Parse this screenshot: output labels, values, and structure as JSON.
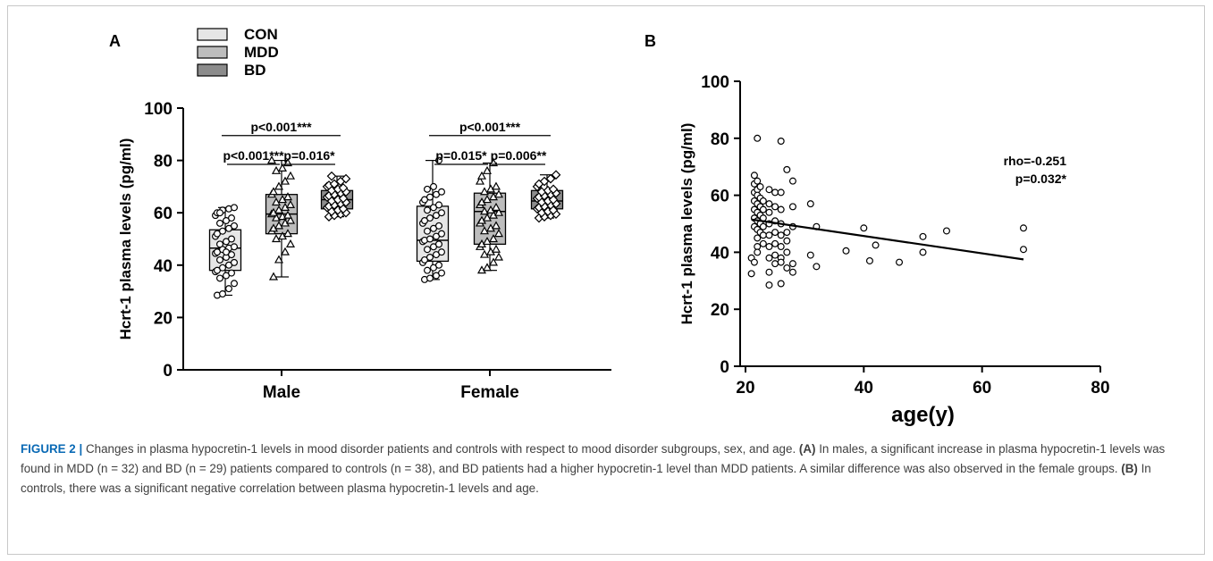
{
  "chart_data": [
    {
      "panel": "A",
      "type": "box",
      "ylabel": "Hcrt-1 plasma levels (pg/ml)",
      "ylim": [
        0,
        100
      ],
      "yticks": [
        0,
        20,
        40,
        60,
        80,
        100
      ],
      "categories": [
        "Male",
        "Female"
      ],
      "legend": [
        "CON",
        "MDD",
        "BD"
      ],
      "colors": {
        "CON": "#e6e6e6",
        "MDD": "#bdbdbd",
        "BD": "#8c8c8c"
      },
      "markers": {
        "CON": "circle",
        "MDD": "triangle",
        "BD": "diamond"
      },
      "boxes": [
        {
          "category": "Male",
          "group": "CON",
          "min": 28.5,
          "q1": 38,
          "median": 46.5,
          "q3": 53.5,
          "max": 62,
          "points": [
            28.5,
            29,
            31,
            33,
            35,
            36,
            37,
            37.5,
            38,
            39,
            40,
            41,
            42,
            43,
            44,
            44.5,
            45,
            46,
            46.5,
            47,
            48,
            49,
            50,
            51,
            52,
            53,
            54,
            55,
            56,
            57,
            58,
            59,
            60,
            61,
            61.5,
            62,
            60,
            45
          ]
        },
        {
          "category": "Male",
          "group": "MDD",
          "min": 35.5,
          "q1": 52,
          "median": 59.5,
          "q3": 67,
          "max": 80,
          "points": [
            35.5,
            42,
            45,
            48,
            50,
            51,
            52,
            53,
            54,
            55,
            56,
            57,
            58,
            58.5,
            59,
            59.5,
            60,
            61,
            62,
            63,
            64,
            65,
            66,
            67,
            68,
            70,
            72,
            74,
            76,
            77,
            79,
            80
          ]
        },
        {
          "category": "Male",
          "group": "BD",
          "min": 58.5,
          "q1": 61.5,
          "median": 65,
          "q3": 68.5,
          "max": 74,
          "points": [
            58.5,
            59,
            59.5,
            60,
            60.5,
            61,
            61.5,
            62,
            62.5,
            63,
            63.5,
            64,
            64.5,
            65,
            65.5,
            66,
            66.5,
            67,
            67.5,
            68,
            68.5,
            69,
            69.5,
            70,
            70.5,
            71,
            72,
            73,
            74
          ]
        },
        {
          "category": "Female",
          "group": "CON",
          "min": 34.5,
          "q1": 41.5,
          "median": 49.5,
          "q3": 62.5,
          "max": 80,
          "points": [
            34.5,
            35,
            36,
            37,
            38,
            39,
            40,
            41,
            42,
            43,
            44,
            45,
            46,
            47,
            48,
            49,
            49.5,
            50,
            51,
            52,
            53,
            54,
            55,
            56,
            57,
            58,
            59,
            60,
            61,
            62,
            63,
            64,
            65,
            66,
            67,
            68,
            69,
            70,
            80
          ]
        },
        {
          "category": "Female",
          "group": "MDD",
          "min": 38,
          "q1": 48,
          "median": 60.5,
          "q3": 67.5,
          "max": 79,
          "points": [
            38,
            39,
            41,
            43,
            44,
            45,
            46,
            47,
            48,
            49,
            50,
            52,
            53,
            54,
            55,
            56,
            57,
            58,
            59,
            60,
            60.5,
            61,
            62,
            63,
            64,
            65,
            66,
            67,
            68,
            69,
            70,
            72,
            74,
            76,
            79
          ]
        },
        {
          "category": "Female",
          "group": "BD",
          "min": 58,
          "q1": 61.5,
          "median": 64.5,
          "q3": 68.5,
          "max": 74.5,
          "points": [
            58,
            58.5,
            59,
            59.5,
            60,
            60.5,
            61,
            61.5,
            62,
            62.5,
            63,
            63.5,
            64,
            64.5,
            65,
            65.5,
            66,
            66.5,
            67,
            67.5,
            68,
            68.5,
            69,
            70,
            71,
            72,
            73,
            74.5
          ]
        }
      ],
      "annotations": [
        {
          "category": "Male",
          "from": "CON",
          "to": "BD",
          "text": "p<0.001***",
          "y": 89.5
        },
        {
          "category": "Male",
          "from": "CON",
          "to": "MDD",
          "text": "p<0.001***",
          "y": 78.5
        },
        {
          "category": "Male",
          "from": "MDD",
          "to": "BD",
          "text": "p=0.016*",
          "y": 78.5
        },
        {
          "category": "Female",
          "from": "CON",
          "to": "BD",
          "text": "p<0.001***",
          "y": 89.5
        },
        {
          "category": "Female",
          "from": "CON",
          "to": "MDD",
          "text": "p=0.015*",
          "y": 78.5
        },
        {
          "category": "Female",
          "from": "MDD",
          "to": "BD",
          "text": "p=0.006**",
          "y": 78.5
        }
      ]
    },
    {
      "panel": "B",
      "type": "scatter",
      "xlabel": "age(y)",
      "ylabel": "Hcrt-1 plasma levels (pg/ml)",
      "xlim": [
        20,
        80
      ],
      "ylim": [
        0,
        100
      ],
      "xticks": [
        20,
        40,
        60,
        80
      ],
      "yticks": [
        0,
        20,
        40,
        60,
        80,
        100
      ],
      "annotation": [
        "rho=-0.251",
        "p=0.032*"
      ],
      "fit_line": {
        "x": [
          21,
          67
        ],
        "y": [
          51.5,
          37.5
        ]
      },
      "points": [
        [
          21,
          38
        ],
        [
          21,
          32.5
        ],
        [
          21.5,
          36.5
        ],
        [
          21.5,
          67
        ],
        [
          21.5,
          64
        ],
        [
          21.5,
          61
        ],
        [
          21.5,
          58
        ],
        [
          21.5,
          55
        ],
        [
          21.5,
          52
        ],
        [
          21.5,
          49
        ],
        [
          22,
          80
        ],
        [
          22,
          65
        ],
        [
          22,
          62
        ],
        [
          22,
          60
        ],
        [
          22,
          57
        ],
        [
          22,
          54
        ],
        [
          22,
          51
        ],
        [
          22,
          48
        ],
        [
          22,
          45
        ],
        [
          22,
          42
        ],
        [
          22,
          40
        ],
        [
          22.5,
          63
        ],
        [
          22.5,
          59
        ],
        [
          22.5,
          56
        ],
        [
          22.5,
          53
        ],
        [
          22.5,
          50
        ],
        [
          22.5,
          47
        ],
        [
          23,
          58
        ],
        [
          23,
          55
        ],
        [
          23,
          52
        ],
        [
          23,
          49
        ],
        [
          23,
          46
        ],
        [
          23,
          43
        ],
        [
          24,
          28.5
        ],
        [
          24,
          33
        ],
        [
          24,
          62
        ],
        [
          24,
          57
        ],
        [
          24,
          54
        ],
        [
          24,
          50
        ],
        [
          24,
          46
        ],
        [
          24,
          42
        ],
        [
          24,
          38
        ],
        [
          25,
          61
        ],
        [
          25,
          56
        ],
        [
          25,
          51
        ],
        [
          25,
          47
        ],
        [
          25,
          43
        ],
        [
          25,
          39
        ],
        [
          25,
          36
        ],
        [
          26,
          79
        ],
        [
          26,
          29
        ],
        [
          26,
          61
        ],
        [
          26,
          55
        ],
        [
          26,
          50
        ],
        [
          26,
          46
        ],
        [
          26,
          42
        ],
        [
          26,
          38
        ],
        [
          26,
          36.5
        ],
        [
          27,
          69
        ],
        [
          27,
          47
        ],
        [
          27,
          44
        ],
        [
          27,
          40
        ],
        [
          27,
          34.5
        ],
        [
          28,
          65
        ],
        [
          28,
          56
        ],
        [
          28,
          49
        ],
        [
          28,
          36
        ],
        [
          28,
          33
        ],
        [
          31,
          57
        ],
        [
          31,
          39
        ],
        [
          32,
          49
        ],
        [
          32,
          35
        ],
        [
          37,
          40.5
        ],
        [
          40,
          48.5
        ],
        [
          41,
          37
        ],
        [
          42,
          42.5
        ],
        [
          46,
          36.5
        ],
        [
          50,
          45.5
        ],
        [
          50,
          40
        ],
        [
          54,
          47.5
        ],
        [
          67,
          48.5
        ],
        [
          67,
          41
        ]
      ]
    }
  ],
  "caption": {
    "label": "FIGURE 2 |",
    "text_1": " Changes in plasma hypocretin-1 levels in mood disorder patients and controls with respect to mood disorder subgroups, sex, and age. ",
    "tag_a": "(A)",
    "text_2": " In males, a significant increase in plasma hypocretin-1 levels was found in MDD (n = 32) and BD (n = 29) patients compared to controls (n = 38), and BD patients had a higher hypocretin-1 level than MDD patients. A similar difference was also observed in the female groups. ",
    "tag_b": "(B)",
    "text_3": " In controls, there was a significant negative correlation between plasma hypocretin-1 levels and age."
  }
}
